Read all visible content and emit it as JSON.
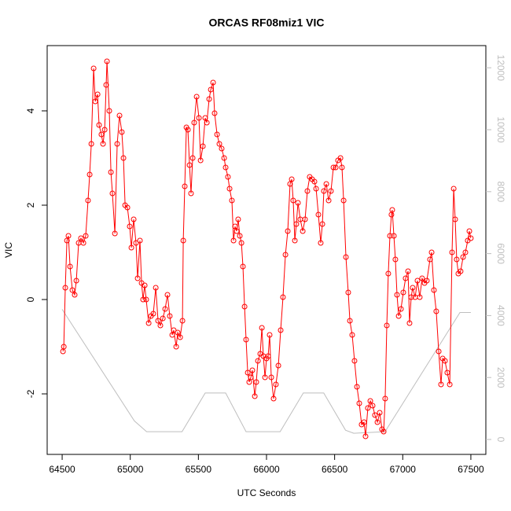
{
  "chart_data": {
    "type": "line",
    "title": "ORCAS RF08miz1 VIC",
    "x_label": "UTC Seconds",
    "y_label": "VIC",
    "xlim": [
      64390,
      67610
    ],
    "xticks": [
      64500,
      65000,
      65500,
      66000,
      66500,
      67000,
      67500
    ],
    "ylim": [
      -3.283,
      5.383
    ],
    "yticks": [
      -2,
      0,
      2,
      4
    ],
    "y2lim": [
      -482,
      12716
    ],
    "y2ticks": [
      0,
      2000,
      4000,
      6000,
      8000,
      10000,
      12000
    ],
    "y2_color": "#bebebe",
    "grid": false,
    "series": [
      {
        "color": "#ff0000",
        "marker": "circle",
        "x": [
          64506,
          64512,
          64523,
          64535,
          64546,
          64558,
          64575,
          64592,
          64604,
          64621,
          64638,
          64656,
          64673,
          64690,
          64702,
          64714,
          64731,
          64743,
          64760,
          64771,
          64788,
          64800,
          64812,
          64823,
          64829,
          64846,
          64858,
          64869,
          64887,
          64904,
          64921,
          64938,
          64950,
          64962,
          64979,
          64996,
          65008,
          65025,
          65042,
          65054,
          65071,
          65083,
          65094,
          65106,
          65117,
          65135,
          65152,
          65169,
          65187,
          65204,
          65221,
          65239,
          65256,
          65273,
          65290,
          65308,
          65319,
          65337,
          65348,
          65366,
          65383,
          65389,
          65400,
          65412,
          65423,
          65435,
          65446,
          65458,
          65469,
          65487,
          65504,
          65516,
          65533,
          65550,
          65562,
          65579,
          65591,
          65608,
          65619,
          65637,
          65654,
          65671,
          65689,
          65700,
          65717,
          65729,
          65746,
          65758,
          65769,
          65781,
          65792,
          65804,
          65816,
          65827,
          65839,
          65850,
          65862,
          65873,
          65885,
          65896,
          65914,
          65925,
          65937,
          65954,
          65966,
          65977,
          65989,
          66000,
          66012,
          66023,
          66035,
          66052,
          66069,
          66087,
          66104,
          66121,
          66139,
          66156,
          66173,
          66185,
          66196,
          66208,
          66219,
          66231,
          66248,
          66266,
          66283,
          66300,
          66317,
          66335,
          66352,
          66364,
          66381,
          66398,
          66410,
          66421,
          66439,
          66456,
          66473,
          66491,
          66508,
          66525,
          66543,
          66554,
          66566,
          66583,
          66600,
          66612,
          66629,
          66646,
          66664,
          66681,
          66698,
          66716,
          66727,
          66744,
          66762,
          66779,
          66796,
          66814,
          66831,
          66848,
          66860,
          66871,
          66883,
          66894,
          66906,
          66917,
          66923,
          66935,
          66946,
          66958,
          66970,
          66987,
          67004,
          67021,
          67039,
          67050,
          67062,
          67073,
          67091,
          67108,
          67125,
          67142,
          67160,
          67177,
          67200,
          67212,
          67229,
          67246,
          67264,
          67281,
          67293,
          67310,
          67327,
          67345,
          67362,
          67374,
          67385,
          67396,
          67408,
          67425,
          67443,
          67460,
          67477,
          67489,
          67500
        ],
        "values": [
          -1.1,
          -1.0,
          0.25,
          1.25,
          1.35,
          0.7,
          0.2,
          0.1,
          0.4,
          1.2,
          1.3,
          1.2,
          1.35,
          2.1,
          2.65,
          3.3,
          4.9,
          4.2,
          4.35,
          3.7,
          3.5,
          3.3,
          3.6,
          4.55,
          5.05,
          4.0,
          2.7,
          2.25,
          1.4,
          3.3,
          3.9,
          3.55,
          3.0,
          2.0,
          1.95,
          1.55,
          1.1,
          1.7,
          1.2,
          0.45,
          1.25,
          0.35,
          0.0,
          0.3,
          0.0,
          -0.5,
          -0.35,
          -0.3,
          0.25,
          -0.45,
          -0.55,
          -0.4,
          -0.2,
          0.1,
          -0.35,
          -0.75,
          -0.65,
          -1.0,
          -0.7,
          -0.8,
          -0.45,
          1.25,
          2.4,
          3.65,
          3.6,
          2.85,
          2.25,
          3.0,
          3.75,
          4.3,
          3.85,
          2.95,
          3.25,
          3.85,
          3.75,
          4.25,
          4.45,
          4.6,
          3.95,
          3.5,
          3.3,
          3.2,
          3.0,
          2.8,
          2.6,
          2.35,
          2.1,
          1.25,
          1.55,
          1.45,
          1.7,
          1.35,
          1.2,
          0.7,
          -0.15,
          -0.85,
          -1.55,
          -1.75,
          -1.65,
          -1.5,
          -2.05,
          -1.75,
          -1.3,
          -1.15,
          -0.6,
          -1.2,
          -1.65,
          -1.25,
          -1.2,
          -0.75,
          -1.65,
          -2.1,
          -1.8,
          -1.4,
          -0.65,
          0.05,
          0.95,
          1.45,
          2.45,
          2.55,
          2.1,
          1.25,
          1.6,
          2.05,
          1.7,
          1.45,
          1.7,
          2.3,
          2.6,
          2.55,
          2.5,
          2.35,
          1.8,
          1.2,
          1.6,
          2.3,
          2.45,
          2.1,
          2.3,
          2.8,
          2.8,
          2.95,
          3.0,
          2.8,
          2.1,
          0.9,
          0.15,
          -0.45,
          -0.75,
          -1.3,
          -1.85,
          -2.2,
          -2.65,
          -2.6,
          -2.9,
          -2.3,
          -2.15,
          -2.25,
          -2.45,
          -2.6,
          -2.4,
          -2.75,
          -2.8,
          -2.1,
          -0.55,
          0.55,
          1.35,
          1.8,
          1.9,
          1.35,
          0.85,
          0.1,
          -0.35,
          -0.2,
          0.15,
          0.45,
          0.6,
          -0.5,
          0.05,
          0.25,
          0.05,
          0.4,
          0.05,
          0.45,
          0.35,
          0.4,
          0.85,
          1.0,
          0.2,
          -0.25,
          -1.1,
          -1.8,
          -1.25,
          -1.3,
          -1.55,
          -1.8,
          1.0,
          2.35,
          1.7,
          0.85,
          0.55,
          0.6,
          0.9,
          1.0,
          1.25,
          1.45,
          1.3
        ]
      },
      {
        "color": "#bebebe",
        "axis": "y2",
        "x": [
          64500,
          65030,
          65120,
          65380,
          65550,
          65700,
          65850,
          66100,
          66270,
          66420,
          66580,
          66640,
          66870,
          67420,
          67500
        ],
        "values": [
          4200,
          600,
          250,
          250,
          1500,
          1500,
          250,
          250,
          1500,
          1500,
          300,
          200,
          250,
          4100,
          4100
        ]
      }
    ]
  }
}
